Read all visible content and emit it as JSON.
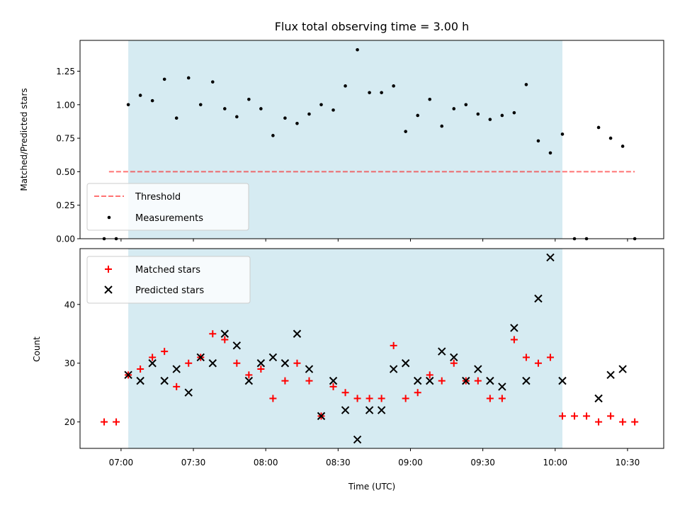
{
  "chart_data": [
    {
      "type": "scatter",
      "title": "Flux total observing time = 3.00 h",
      "xlabel": "",
      "ylabel": "Matched/Predicted stars",
      "xlim": [
        "06:43",
        "10:45"
      ],
      "ylim": [
        0,
        1.48
      ],
      "yticks": [
        0.0,
        0.25,
        0.5,
        0.75,
        1.0,
        1.25
      ],
      "ytick_labels": [
        "0.00",
        "0.25",
        "0.50",
        "0.75",
        "1.00",
        "1.25"
      ],
      "shaded_interval": [
        "07:03",
        "10:03"
      ],
      "shaded_color": "#add8e6",
      "threshold": {
        "name": "Threshold",
        "value": 0.5,
        "x_range": [
          "06:55",
          "10:33"
        ],
        "color": "#ff0000"
      },
      "series": [
        {
          "name": "Measurements",
          "marker": "dot",
          "color": "#000000",
          "points": [
            [
              "06:53",
              0.0
            ],
            [
              "06:58",
              0.0
            ],
            [
              "07:03",
              1.0
            ],
            [
              "07:08",
              1.07
            ],
            [
              "07:13",
              1.03
            ],
            [
              "07:18",
              1.19
            ],
            [
              "07:23",
              0.9
            ],
            [
              "07:28",
              1.2
            ],
            [
              "07:33",
              1.0
            ],
            [
              "07:38",
              1.17
            ],
            [
              "07:43",
              0.97
            ],
            [
              "07:48",
              0.91
            ],
            [
              "07:53",
              1.04
            ],
            [
              "07:58",
              0.97
            ],
            [
              "08:03",
              0.77
            ],
            [
              "08:08",
              0.9
            ],
            [
              "08:13",
              0.86
            ],
            [
              "08:18",
              0.93
            ],
            [
              "08:23",
              1.0
            ],
            [
              "08:28",
              0.96
            ],
            [
              "08:33",
              1.14
            ],
            [
              "08:38",
              1.41
            ],
            [
              "08:43",
              1.09
            ],
            [
              "08:48",
              1.09
            ],
            [
              "08:53",
              1.14
            ],
            [
              "08:58",
              0.8
            ],
            [
              "09:03",
              0.92
            ],
            [
              "09:08",
              1.04
            ],
            [
              "09:13",
              0.84
            ],
            [
              "09:18",
              0.97
            ],
            [
              "09:23",
              1.0
            ],
            [
              "09:28",
              0.93
            ],
            [
              "09:33",
              0.89
            ],
            [
              "09:38",
              0.92
            ],
            [
              "09:43",
              0.94
            ],
            [
              "09:48",
              1.15
            ],
            [
              "09:53",
              0.73
            ],
            [
              "09:58",
              0.64
            ],
            [
              "10:03",
              0.78
            ],
            [
              "10:08",
              0.0
            ],
            [
              "10:13",
              0.0
            ],
            [
              "10:18",
              0.83
            ],
            [
              "10:23",
              0.75
            ],
            [
              "10:28",
              0.69
            ],
            [
              "10:33",
              0.0
            ]
          ]
        }
      ],
      "legend": {
        "placement": "lower-left",
        "entries": [
          "Threshold",
          "Measurements"
        ]
      }
    },
    {
      "type": "scatter",
      "title": "",
      "xlabel": "Time (UTC)",
      "ylabel": "Count",
      "xlim": [
        "06:43",
        "10:45"
      ],
      "ylim": [
        15.5,
        49.5
      ],
      "yticks": [
        20,
        30,
        40
      ],
      "ytick_labels": [
        "20",
        "30",
        "40"
      ],
      "xticks": [
        "07:00",
        "07:30",
        "08:00",
        "08:30",
        "09:00",
        "09:30",
        "10:00",
        "10:30"
      ],
      "xtick_labels": [
        "07:00",
        "07:30",
        "08:00",
        "08:30",
        "09:00",
        "09:30",
        "10:00",
        "10:30"
      ],
      "shaded_interval": [
        "07:03",
        "10:03"
      ],
      "shaded_color": "#add8e6",
      "series": [
        {
          "name": "Matched stars",
          "marker": "plus",
          "color": "#ff0000",
          "points": [
            [
              "06:53",
              20
            ],
            [
              "06:58",
              20
            ],
            [
              "07:03",
              28
            ],
            [
              "07:08",
              29
            ],
            [
              "07:13",
              31
            ],
            [
              "07:18",
              32
            ],
            [
              "07:23",
              26
            ],
            [
              "07:28",
              30
            ],
            [
              "07:33",
              31
            ],
            [
              "07:38",
              35
            ],
            [
              "07:43",
              34
            ],
            [
              "07:48",
              30
            ],
            [
              "07:53",
              28
            ],
            [
              "07:58",
              29
            ],
            [
              "08:03",
              24
            ],
            [
              "08:08",
              27
            ],
            [
              "08:13",
              30
            ],
            [
              "08:18",
              27
            ],
            [
              "08:23",
              21
            ],
            [
              "08:28",
              26
            ],
            [
              "08:33",
              25
            ],
            [
              "08:38",
              24
            ],
            [
              "08:43",
              24
            ],
            [
              "08:48",
              24
            ],
            [
              "08:53",
              33
            ],
            [
              "08:58",
              24
            ],
            [
              "09:03",
              25
            ],
            [
              "09:08",
              28
            ],
            [
              "09:13",
              27
            ],
            [
              "09:18",
              30
            ],
            [
              "09:23",
              27
            ],
            [
              "09:28",
              27
            ],
            [
              "09:33",
              24
            ],
            [
              "09:38",
              24
            ],
            [
              "09:43",
              34
            ],
            [
              "09:48",
              31
            ],
            [
              "09:53",
              30
            ],
            [
              "09:58",
              31
            ],
            [
              "10:03",
              21
            ],
            [
              "10:08",
              21
            ],
            [
              "10:13",
              21
            ],
            [
              "10:18",
              20
            ],
            [
              "10:23",
              21
            ],
            [
              "10:28",
              20
            ],
            [
              "10:33",
              20
            ]
          ]
        },
        {
          "name": "Predicted stars",
          "marker": "x",
          "color": "#000000",
          "points": [
            [
              "07:03",
              28
            ],
            [
              "07:08",
              27
            ],
            [
              "07:13",
              30
            ],
            [
              "07:18",
              27
            ],
            [
              "07:23",
              29
            ],
            [
              "07:28",
              25
            ],
            [
              "07:33",
              31
            ],
            [
              "07:38",
              30
            ],
            [
              "07:43",
              35
            ],
            [
              "07:48",
              33
            ],
            [
              "07:53",
              27
            ],
            [
              "07:58",
              30
            ],
            [
              "08:03",
              31
            ],
            [
              "08:08",
              30
            ],
            [
              "08:13",
              35
            ],
            [
              "08:18",
              29
            ],
            [
              "08:23",
              21
            ],
            [
              "08:28",
              27
            ],
            [
              "08:33",
              22
            ],
            [
              "08:38",
              17
            ],
            [
              "08:43",
              22
            ],
            [
              "08:48",
              22
            ],
            [
              "08:53",
              29
            ],
            [
              "08:58",
              30
            ],
            [
              "09:03",
              27
            ],
            [
              "09:08",
              27
            ],
            [
              "09:13",
              32
            ],
            [
              "09:18",
              31
            ],
            [
              "09:23",
              27
            ],
            [
              "09:28",
              29
            ],
            [
              "09:33",
              27
            ],
            [
              "09:38",
              26
            ],
            [
              "09:43",
              36
            ],
            [
              "09:48",
              27
            ],
            [
              "09:53",
              41
            ],
            [
              "09:58",
              48
            ],
            [
              "10:03",
              27
            ],
            [
              "10:18",
              24
            ],
            [
              "10:23",
              28
            ],
            [
              "10:28",
              29
            ]
          ]
        }
      ],
      "legend": {
        "placement": "upper-left",
        "entries": [
          "Matched stars",
          "Predicted stars"
        ]
      }
    }
  ]
}
